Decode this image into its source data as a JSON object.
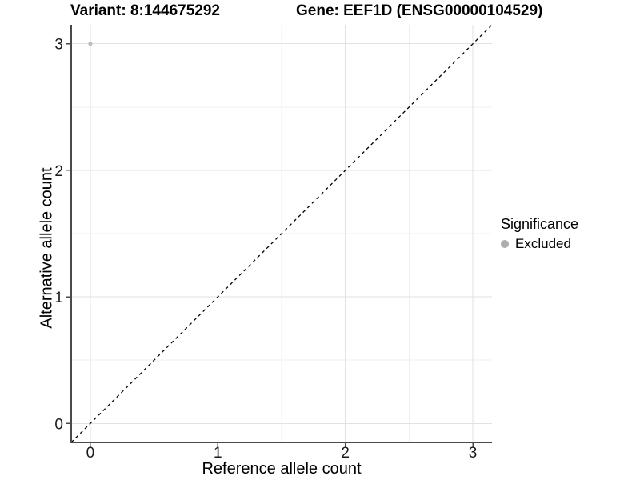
{
  "chart_data": {
    "type": "scatter",
    "titles": {
      "variant": "Variant: 8:144675292",
      "gene": "Gene: EEF1D (ENSG00000104529)"
    },
    "xlabel": "Reference allele count",
    "ylabel": "Alternative allele count",
    "x_ticks": [
      0,
      1,
      2,
      3
    ],
    "y_ticks": [
      0,
      1,
      2,
      3
    ],
    "x_minor_ticks": [
      0.5,
      1.5,
      2.5
    ],
    "y_minor_ticks": [
      0.5,
      1.5,
      2.5
    ],
    "xlim": [
      -0.15,
      3.15
    ],
    "ylim": [
      -0.15,
      3.15
    ],
    "grid": true,
    "series": [
      {
        "name": "Excluded",
        "color": "#bdbdbd",
        "points": [
          {
            "x": 0,
            "y": 3
          }
        ]
      }
    ],
    "reference_line": {
      "kind": "identity y=x",
      "style": "dashed",
      "color": "#000000",
      "from": -0.15,
      "to": 3.15
    },
    "legend": {
      "title": "Significance",
      "position": "right",
      "items": [
        {
          "label": "Excluded",
          "color": "#adadad"
        }
      ]
    },
    "colors": {
      "background": "#ffffff",
      "grid_major": "#e2e2e2",
      "grid_minor": "#efefef",
      "axis_line": "#4a4a4a",
      "tick_mark": "#4a4a4a",
      "tick_label": "#1a1a1a",
      "text": "#000000"
    }
  }
}
